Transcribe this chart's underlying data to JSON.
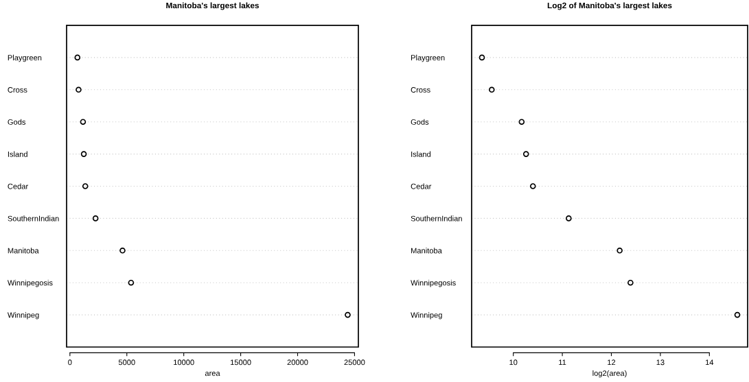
{
  "chart_data": [
    {
      "type": "scatter",
      "title": "Manitoba's largest lakes",
      "xlabel": "area",
      "orientation": "horizontal",
      "categories": [
        "Playgreen",
        "Cross",
        "Gods",
        "Island",
        "Cedar",
        "SouthernIndian",
        "Manitoba",
        "Winnipegosis",
        "Winnipeg"
      ],
      "series": [
        {
          "color": "#000000",
          "values": [
            660,
            760,
            1150,
            1220,
            1350,
            2250,
            4620,
            5370,
            24400
          ]
        }
      ],
      "xlim": [
        -292,
        25336
      ],
      "xticks": [
        0,
        5000,
        10000,
        15000,
        20000,
        25000
      ],
      "grid": "y",
      "marker": "circle"
    },
    {
      "type": "scatter",
      "title": "Log2 of Manitoba's largest lakes",
      "xlabel": "log2(area)",
      "orientation": "horizontal",
      "categories": [
        "Playgreen",
        "Cross",
        "Gods",
        "Island",
        "Cedar",
        "SouthernIndian",
        "Manitoba",
        "Winnipegosis",
        "Winnipeg"
      ],
      "series": [
        {
          "color": "#000000",
          "values": [
            9.36,
            9.56,
            10.17,
            10.26,
            10.4,
            11.13,
            12.17,
            12.39,
            14.57
          ]
        }
      ],
      "xlim": [
        9.15,
        14.78
      ],
      "xticks": [
        10,
        11,
        12,
        13,
        14
      ],
      "grid": "y",
      "marker": "circle"
    }
  ]
}
